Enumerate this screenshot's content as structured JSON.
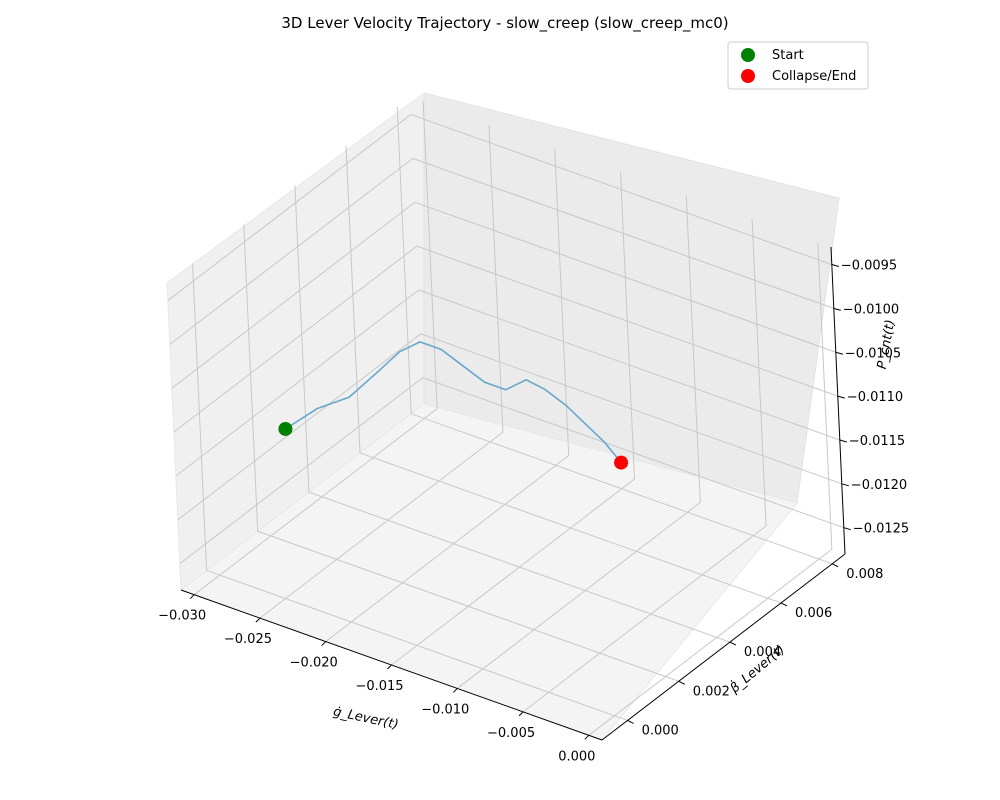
{
  "chart_data": {
    "type": "line",
    "projection": "3d",
    "title": "3D Lever Velocity Trajectory - slow_creep (slow_creep_mc0)",
    "xlabel": "ġ_Lever(t)",
    "ylabel": "β̇_Lever(t)",
    "zlabel": "P_cnt(t)",
    "x_ticks": [
      "−0.030",
      "−0.025",
      "−0.020",
      "−0.015",
      "−0.010",
      "−0.005",
      "0.000"
    ],
    "y_ticks": [
      "0.000",
      "0.002",
      "0.004",
      "0.006",
      "0.008"
    ],
    "z_ticks": [
      "−0.0095",
      "−0.0100",
      "−0.0105",
      "−0.0110",
      "−0.0115",
      "−0.0120",
      "−0.0125"
    ],
    "xlim": [
      -0.031,
      0.001
    ],
    "ylim": [
      -0.001,
      0.0085
    ],
    "zlim": [
      -0.0128,
      -0.0093
    ],
    "grid": true,
    "legend_position": "top-right",
    "legend": [
      {
        "label": "Start",
        "color": "#008000"
      },
      {
        "label": "Collapse/End",
        "color": "#ff0000"
      }
    ],
    "line_color": "#5b9ec9",
    "series": [
      {
        "points": [
          [
            -0.0285,
            0.002,
            -0.0115
          ],
          [
            -0.027,
            0.0025,
            -0.0113
          ],
          [
            -0.0255,
            0.003,
            -0.0112
          ],
          [
            -0.0245,
            0.0036,
            -0.011
          ],
          [
            -0.0235,
            0.004,
            -0.0108
          ],
          [
            -0.0225,
            0.0043,
            -0.0107
          ],
          [
            -0.0215,
            0.0046,
            -0.0108
          ],
          [
            -0.0205,
            0.0049,
            -0.011
          ],
          [
            -0.0195,
            0.0052,
            -0.0112
          ],
          [
            -0.0185,
            0.0055,
            -0.0113
          ],
          [
            -0.0175,
            0.0058,
            -0.0112
          ],
          [
            -0.0165,
            0.006,
            -0.0113
          ],
          [
            -0.0155,
            0.0063,
            -0.0115
          ],
          [
            -0.0145,
            0.0065,
            -0.0117
          ],
          [
            -0.0135,
            0.0067,
            -0.0119
          ],
          [
            -0.0125,
            0.0068,
            -0.0121
          ]
        ],
        "start": [
          -0.0285,
          0.002,
          -0.0115
        ],
        "end": [
          -0.0125,
          0.0068,
          -0.0121
        ]
      }
    ]
  }
}
